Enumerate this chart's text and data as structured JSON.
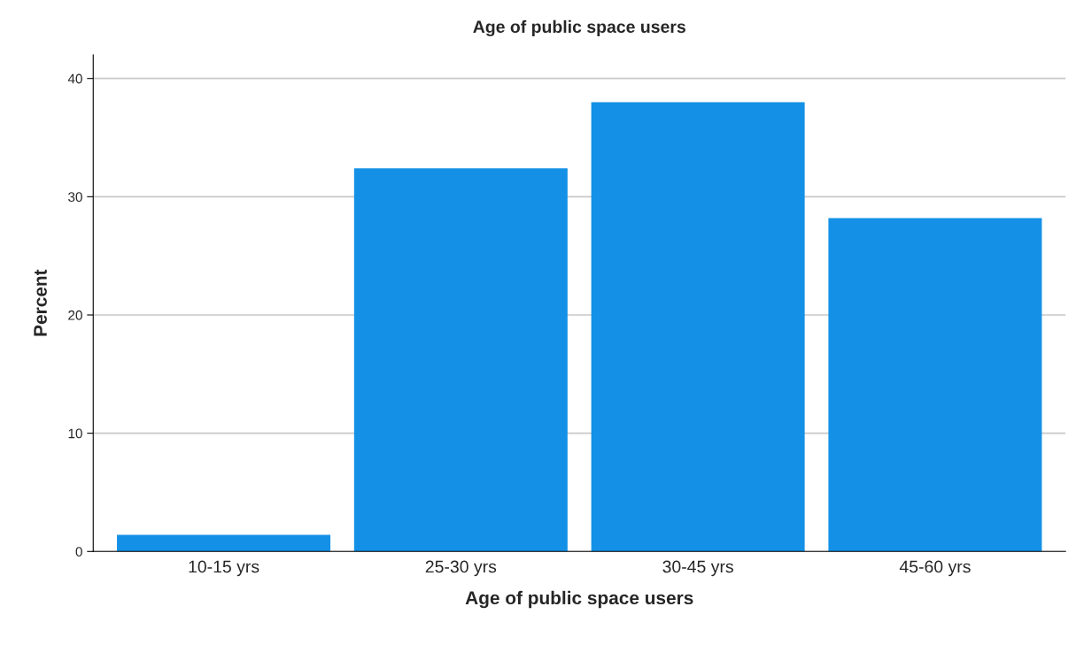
{
  "chart_data": {
    "type": "bar",
    "title": "Age of public space users",
    "xlabel": "Age of public space users",
    "ylabel": "Percent",
    "categories": [
      "10-15 yrs",
      "25-30 yrs",
      "30-45 yrs",
      "45-60 yrs"
    ],
    "values": [
      1.4,
      32.4,
      38.0,
      28.2
    ],
    "color": "#1491e6",
    "ylim": [
      0,
      42
    ],
    "yticks": [
      0,
      10,
      20,
      30,
      40
    ],
    "grid": "y"
  }
}
